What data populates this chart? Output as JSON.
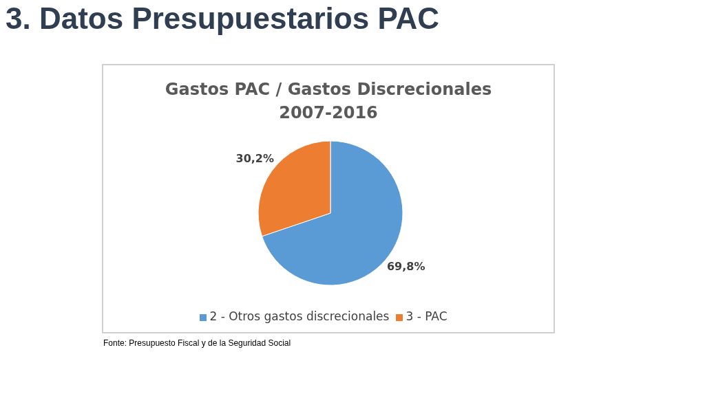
{
  "chart_data": {
    "type": "pie",
    "title": "3. Datos Presupuestarios PAC",
    "subtitle": "Gastos PAC / Gastos Discrecionales\n2007-2016",
    "categories": [
      "2 - Otros gastos discrecionales",
      "3 - PAC"
    ],
    "values": [
      69.8,
      30.2
    ],
    "colors": [
      "#5b9bd5",
      "#ed7d31"
    ],
    "value_labels": [
      "69,8%",
      "30,2%"
    ],
    "legend": "bottom",
    "annotations": [
      "Fonte: Presupuesto Fiscal y de la Seguridad Social"
    ]
  }
}
